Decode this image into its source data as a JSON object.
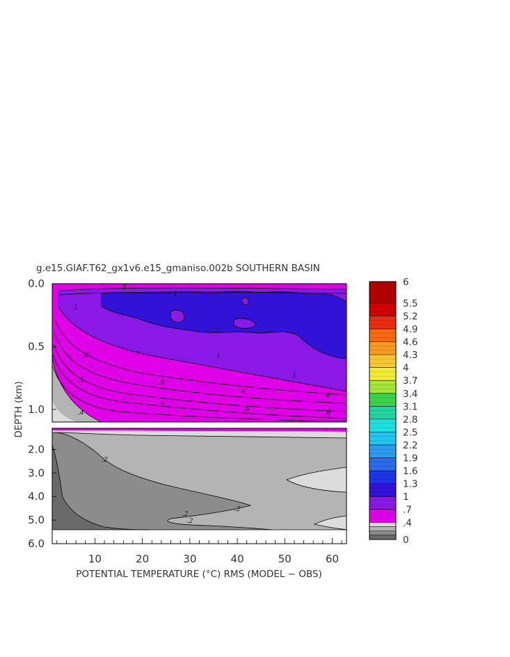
{
  "chart_data": {
    "type": "heatmap",
    "title": "g.e15.GIAF.T62_gx1v6.e15_gmaniso.002b SOUTHERN BASIN",
    "xlabel": "POTENTIAL TEMPERATURE (°C) RMS (MODEL − OBS)",
    "ylabel": "DEPTH (km)",
    "x_ticks": [
      "10",
      "20",
      "30",
      "40",
      "50",
      "60"
    ],
    "y_ticks_upper": [
      "0.0",
      "0.5",
      "1.0"
    ],
    "y_ticks_lower": [
      "2.0",
      "3.0",
      "4.0",
      "5.0",
      "6.0"
    ],
    "xlim": [
      1,
      63
    ],
    "ylim_upper_km": [
      0.0,
      1.1
    ],
    "ylim_lower_km": [
      1.1,
      6.0
    ],
    "colorbar": {
      "labels": [
        "6",
        "5.5",
        "5.2",
        "4.9",
        "4.6",
        "4.3",
        "4",
        "3.7",
        "3.4",
        "3.1",
        "2.8",
        "2.5",
        "2.2",
        "1.9",
        "1.6",
        "1.3",
        "1",
        ".7",
        ".4",
        "0"
      ],
      "bands": [
        {
          "from": 5.5,
          "to": 6.0,
          "color": "#b00000"
        },
        {
          "from": 5.2,
          "to": 5.5,
          "color": "#d40000"
        },
        {
          "from": 4.9,
          "to": 5.2,
          "color": "#ee2a10"
        },
        {
          "from": 4.6,
          "to": 4.9,
          "color": "#f46a12"
        },
        {
          "from": 4.3,
          "to": 4.6,
          "color": "#f79a22"
        },
        {
          "from": 4.0,
          "to": 4.3,
          "color": "#f8c830"
        },
        {
          "from": 3.7,
          "to": 4.0,
          "color": "#f2ec32"
        },
        {
          "from": 3.4,
          "to": 3.7,
          "color": "#a6e63a"
        },
        {
          "from": 3.1,
          "to": 3.4,
          "color": "#3cd24a"
        },
        {
          "from": 2.8,
          "to": 3.1,
          "color": "#22d6a2"
        },
        {
          "from": 2.5,
          "to": 2.8,
          "color": "#1ee0e0"
        },
        {
          "from": 2.2,
          "to": 2.5,
          "color": "#24c4ee"
        },
        {
          "from": 1.9,
          "to": 2.2,
          "color": "#2a9cf0"
        },
        {
          "from": 1.6,
          "to": 1.9,
          "color": "#2a6cf0"
        },
        {
          "from": 1.3,
          "to": 1.6,
          "color": "#1e32e6"
        },
        {
          "from": 1.0,
          "to": 1.3,
          "color": "#3212d6"
        },
        {
          "from": 0.7,
          "to": 1.0,
          "color": "#8a18e6"
        },
        {
          "from": 0.4,
          "to": 0.7,
          "color": "#e000e8"
        },
        {
          "from": 0.3,
          "to": 0.4,
          "color": "#dcdcdc"
        },
        {
          "from": 0.2,
          "to": 0.3,
          "color": "#b4b4b4"
        },
        {
          "from": 0.1,
          "to": 0.2,
          "color": "#8c8c8c"
        },
        {
          "from": 0.0,
          "to": 0.1,
          "color": "#6a6a6a"
        }
      ]
    },
    "contour_labels": [
      {
        "text": ".8",
        "x": 16,
        "depth_km": 0.02
      },
      {
        "text": "1",
        "x": 6,
        "depth_km": 0.18
      },
      {
        "text": "1",
        "x": 27,
        "depth_km": 0.07
      },
      {
        "text": "1",
        "x": 19,
        "depth_km": 0.55
      },
      {
        "text": "1",
        "x": 36,
        "depth_km": 0.57
      },
      {
        "text": "1",
        "x": 52,
        "depth_km": 0.72
      },
      {
        "text": ".8",
        "x": 8,
        "depth_km": 0.56
      },
      {
        "text": ".8",
        "x": 24,
        "depth_km": 0.78
      },
      {
        "text": ".8",
        "x": 41,
        "depth_km": 0.85
      },
      {
        "text": ".8",
        "x": 59,
        "depth_km": 0.88
      },
      {
        "text": ".6",
        "x": 7,
        "depth_km": 0.76
      },
      {
        "text": ".6",
        "x": 24,
        "depth_km": 0.95
      },
      {
        "text": ".6",
        "x": 42,
        "depth_km": 0.99
      },
      {
        "text": ".6",
        "x": 59,
        "depth_km": 1.02
      },
      {
        "text": ".4",
        "x": 7,
        "depth_km": 1.02
      },
      {
        "text": ".4",
        "x": 33,
        "depth_km": 1.12
      },
      {
        "text": ".4",
        "x": 51,
        "depth_km": 1.12
      },
      {
        "text": ".2",
        "x": 12,
        "depth_km": 2.4
      },
      {
        "text": ".2",
        "x": 29,
        "depth_km": 4.7
      },
      {
        "text": ".2",
        "x": 40,
        "depth_km": 4.5
      },
      {
        "text": ".2",
        "x": 30,
        "depth_km": 5.0
      }
    ]
  }
}
